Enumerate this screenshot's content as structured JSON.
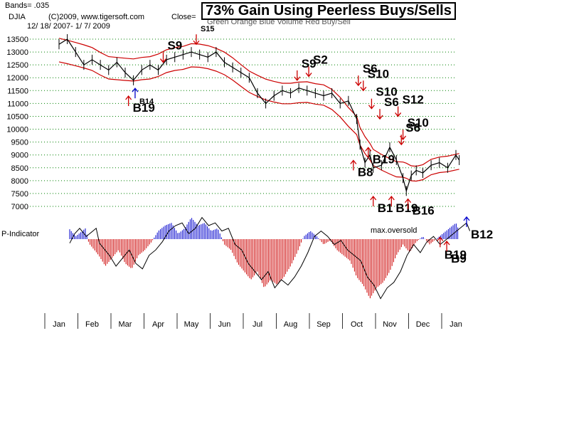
{
  "header": {
    "bands": "Bands= .035",
    "symbol": "DJIA",
    "copyright": "(C)2009, www.tigersoft.com",
    "close_label": "Close=",
    "date_range": "12/ 18/ 2007- 1/ 7/ 2009",
    "legend_fragment": "Green  Orange  Blue  Volume  Red  Buy/Sell",
    "title": "73% Gain Using Peerless Buys/Sells"
  },
  "colors": {
    "price": "#000000",
    "band": "#cc0000",
    "grid": "#008000",
    "buy": "#cc0000",
    "sell": "#cc0000",
    "positive_indicator": "#0000cc",
    "negative_indicator": "#cc0000",
    "special_signal": "#0000cc"
  },
  "chart_data": [
    {
      "type": "line",
      "name": "DJIA daily price with bands",
      "y_ticks": [
        13500,
        13000,
        12500,
        12000,
        11500,
        11000,
        10500,
        10000,
        9500,
        9000,
        8500,
        8000,
        7500,
        7000
      ],
      "ylim": [
        7000,
        13700
      ],
      "x_ticks": [
        "Jan",
        "Feb",
        "Mar",
        "Apr",
        "May",
        "Jun",
        "Jul",
        "Aug",
        "Sep",
        "Oct",
        "Nov",
        "Dec",
        "Jan"
      ],
      "band_pct": 0.035,
      "series": [
        {
          "name": "DJIA close",
          "points": [
            [
              0,
              13300
            ],
            [
              0.25,
              13500
            ],
            [
              0.5,
              13000
            ],
            [
              0.75,
              12500
            ],
            [
              1,
              12700
            ],
            [
              1.25,
              12500
            ],
            [
              1.5,
              12300
            ],
            [
              1.75,
              12600
            ],
            [
              2,
              12200
            ],
            [
              2.25,
              11900
            ],
            [
              2.5,
              12300
            ],
            [
              2.75,
              12500
            ],
            [
              3,
              12300
            ],
            [
              3.25,
              12700
            ],
            [
              3.5,
              12800
            ],
            [
              3.75,
              12900
            ],
            [
              4,
              13000
            ],
            [
              4.25,
              12900
            ],
            [
              4.5,
              12800
            ],
            [
              4.75,
              13000
            ],
            [
              5,
              12600
            ],
            [
              5.25,
              12400
            ],
            [
              5.5,
              12200
            ],
            [
              5.75,
              12000
            ],
            [
              6,
              11400
            ],
            [
              6.25,
              11000
            ],
            [
              6.5,
              11300
            ],
            [
              6.75,
              11500
            ],
            [
              7,
              11400
            ],
            [
              7.25,
              11600
            ],
            [
              7.5,
              11500
            ],
            [
              7.75,
              11400
            ],
            [
              8,
              11300
            ],
            [
              8.25,
              11400
            ],
            [
              8.5,
              11000
            ],
            [
              8.75,
              11100
            ],
            [
              9,
              10400
            ],
            [
              9.1,
              9400
            ],
            [
              9.25,
              8700
            ],
            [
              9.4,
              9000
            ],
            [
              9.5,
              8500
            ],
            [
              9.75,
              8600
            ],
            [
              10,
              9300
            ],
            [
              10.2,
              8800
            ],
            [
              10.4,
              8100
            ],
            [
              10.5,
              7600
            ],
            [
              10.65,
              8200
            ],
            [
              10.8,
              8400
            ],
            [
              11,
              8300
            ],
            [
              11.25,
              8600
            ],
            [
              11.5,
              8700
            ],
            [
              11.75,
              8500
            ],
            [
              12,
              9000
            ],
            [
              12.1,
              8800
            ]
          ]
        }
      ],
      "signals": [
        {
          "label": "S9",
          "x": 3.15,
          "y": 12600,
          "kind": "sell"
        },
        {
          "label": "B14",
          "x": 2.3,
          "y": 11200,
          "kind": "special"
        },
        {
          "label": "B19",
          "x": 2.1,
          "y": 10900,
          "kind": "buy"
        },
        {
          "label": "S15",
          "x": 4.15,
          "y": 13300,
          "kind": "sell"
        },
        {
          "label": "S9",
          "x": 7.2,
          "y": 11900,
          "kind": "sell"
        },
        {
          "label": "S2",
          "x": 7.55,
          "y": 12050,
          "kind": "sell"
        },
        {
          "label": "S6",
          "x": 9.05,
          "y": 11700,
          "kind": "sell"
        },
        {
          "label": "S10",
          "x": 9.2,
          "y": 11500,
          "kind": "sell"
        },
        {
          "label": "S10",
          "x": 9.45,
          "y": 10800,
          "kind": "sell"
        },
        {
          "label": "S6",
          "x": 9.7,
          "y": 10400,
          "kind": "sell"
        },
        {
          "label": "S12",
          "x": 10.25,
          "y": 10500,
          "kind": "sell"
        },
        {
          "label": "S10",
          "x": 10.4,
          "y": 9600,
          "kind": "sell"
        },
        {
          "label": "S6",
          "x": 10.35,
          "y": 9400,
          "kind": "sell"
        },
        {
          "label": "B19",
          "x": 9.35,
          "y": 8900,
          "kind": "buy"
        },
        {
          "label": "B8",
          "x": 8.9,
          "y": 8400,
          "kind": "buy"
        },
        {
          "label": "B1",
          "x": 9.5,
          "y": 7000,
          "kind": "buy"
        },
        {
          "label": "B19",
          "x": 10.05,
          "y": 7000,
          "kind": "buy"
        },
        {
          "label": "B16",
          "x": 10.55,
          "y": 6900,
          "kind": "buy"
        }
      ]
    },
    {
      "type": "area",
      "name": "P-Indicator",
      "label": "P-Indicator",
      "annotation": "max.oversold",
      "series": [
        {
          "name": "P-Indicator",
          "points": [
            [
              0,
              -15
            ],
            [
              0.15,
              20
            ],
            [
              0.3,
              40
            ],
            [
              0.5,
              10
            ],
            [
              0.7,
              30
            ],
            [
              0.8,
              40
            ],
            [
              0.9,
              -15
            ],
            [
              1,
              -30
            ],
            [
              1.2,
              -60
            ],
            [
              1.4,
              -100
            ],
            [
              1.6,
              -70
            ],
            [
              1.8,
              -40
            ],
            [
              2,
              -90
            ],
            [
              2.2,
              -110
            ],
            [
              2.4,
              -60
            ],
            [
              2.6,
              -40
            ],
            [
              2.8,
              -10
            ],
            [
              3.0,
              30
            ],
            [
              3.2,
              50
            ],
            [
              3.4,
              60
            ],
            [
              3.6,
              20
            ],
            [
              3.8,
              40
            ],
            [
              4.0,
              80
            ],
            [
              4.2,
              50
            ],
            [
              4.4,
              60
            ],
            [
              4.6,
              30
            ],
            [
              4.8,
              40
            ],
            [
              5.0,
              -20
            ],
            [
              5.2,
              -40
            ],
            [
              5.4,
              -90
            ],
            [
              5.6,
              -120
            ],
            [
              5.8,
              -150
            ],
            [
              6.0,
              -120
            ],
            [
              6.2,
              -180
            ],
            [
              6.4,
              -150
            ],
            [
              6.6,
              -170
            ],
            [
              6.8,
              -140
            ],
            [
              7.0,
              -100
            ],
            [
              7.2,
              -50
            ],
            [
              7.4,
              10
            ],
            [
              7.6,
              30
            ],
            [
              7.8,
              10
            ],
            [
              8.0,
              -20
            ],
            [
              8.2,
              -5
            ],
            [
              8.4,
              -40
            ],
            [
              8.6,
              -60
            ],
            [
              8.8,
              -80
            ],
            [
              9.0,
              -140
            ],
            [
              9.2,
              -170
            ],
            [
              9.4,
              -220
            ],
            [
              9.6,
              -180
            ],
            [
              9.8,
              -160
            ],
            [
              10.0,
              -120
            ],
            [
              10.2,
              -60
            ],
            [
              10.4,
              -20
            ],
            [
              10.6,
              -50
            ],
            [
              10.8,
              -10
            ],
            [
              11.0,
              10
            ],
            [
              11.2,
              -20
            ],
            [
              11.4,
              0
            ],
            [
              11.6,
              20
            ],
            [
              11.8,
              40
            ],
            [
              12.0,
              60
            ],
            [
              12.1,
              30
            ]
          ]
        }
      ],
      "signals": [
        {
          "label": "B19",
          "x": 11.2,
          "y": -30,
          "kind": "buy"
        },
        {
          "label": "B9",
          "x": 11.4,
          "y": -45,
          "kind": "buy"
        },
        {
          "label": "B12",
          "x": 12.0,
          "y": 45,
          "kind": "special"
        }
      ]
    }
  ]
}
